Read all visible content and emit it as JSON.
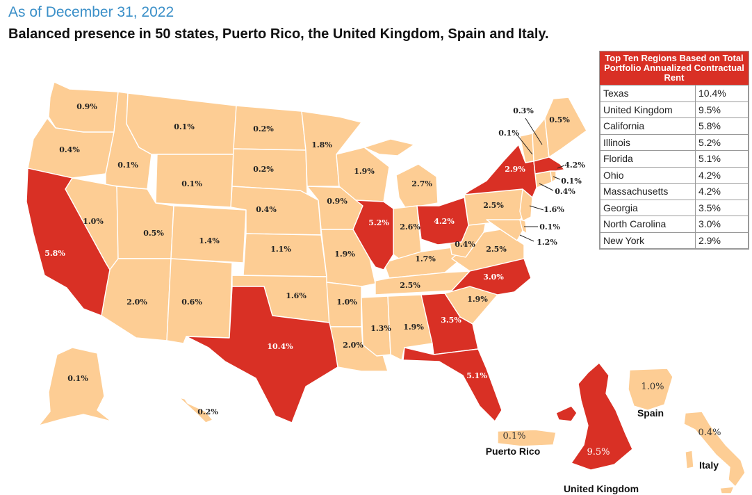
{
  "header": {
    "date": "As of December 31, 2022",
    "headline": "Balanced presence in 50 states, Puerto Rico, the United Kingdom, Spain and Italy."
  },
  "colors": {
    "highlight": "#d93025",
    "base": "#fdcd94",
    "date_text": "#3a8fc8"
  },
  "legend": {
    "title": "Top Ten Regions Based on Total Portfolio Annualized Contractual Rent",
    "rows": [
      {
        "region": "Texas",
        "value": "10.4%"
      },
      {
        "region": "United Kingdom",
        "value": "9.5%"
      },
      {
        "region": "California",
        "value": "5.8%"
      },
      {
        "region": "Illinois",
        "value": "5.2%"
      },
      {
        "region": "Florida",
        "value": "5.1%"
      },
      {
        "region": "Ohio",
        "value": "4.2%"
      },
      {
        "region": "Massachusetts",
        "value": "4.2%"
      },
      {
        "region": "Georgia",
        "value": "3.5%"
      },
      {
        "region": "North Carolina",
        "value": "3.0%"
      },
      {
        "region": "New York",
        "value": "2.9%"
      }
    ]
  },
  "regions": {
    "WA": "0.9%",
    "OR": "0.4%",
    "CA": "5.8%",
    "NV": "1.0%",
    "ID": "0.1%",
    "MT": "0.1%",
    "WY": "0.1%",
    "UT": "0.5%",
    "AZ": "2.0%",
    "CO": "1.4%",
    "NM": "0.6%",
    "ND": "0.2%",
    "SD": "0.2%",
    "NE": "0.4%",
    "KS": "1.1%",
    "OK": "1.6%",
    "TX": "10.4%",
    "MN": "1.8%",
    "IA": "0.9%",
    "MO": "1.9%",
    "AR": "1.0%",
    "LA": "2.0%",
    "WI": "1.9%",
    "IL": "5.2%",
    "MI": "2.7%",
    "IN": "2.6%",
    "OH": "4.2%",
    "KY": "1.7%",
    "TN": "2.5%",
    "MS": "1.3%",
    "AL": "1.9%",
    "GA": "3.5%",
    "FL": "5.1%",
    "SC": "1.9%",
    "NC": "3.0%",
    "VA": "2.5%",
    "WV": "0.4%",
    "PA": "2.5%",
    "NY": "2.9%",
    "VT": "0.1%",
    "NH": "0.3%",
    "ME": "0.5%",
    "MA": "4.2%",
    "RI": "0.1%",
    "CT": "0.4%",
    "NJ": "1.6%",
    "DE": "0.1%",
    "MD": "1.2%",
    "AK": "0.1%",
    "HI": "0.2%",
    "PR": "0.1%",
    "UK": "9.5%",
    "ES": "1.0%",
    "IT": "0.4%"
  },
  "territory_names": {
    "puerto_rico": "Puerto Rico",
    "united_kingdom": "United Kingdom",
    "spain": "Spain",
    "italy": "Italy"
  }
}
